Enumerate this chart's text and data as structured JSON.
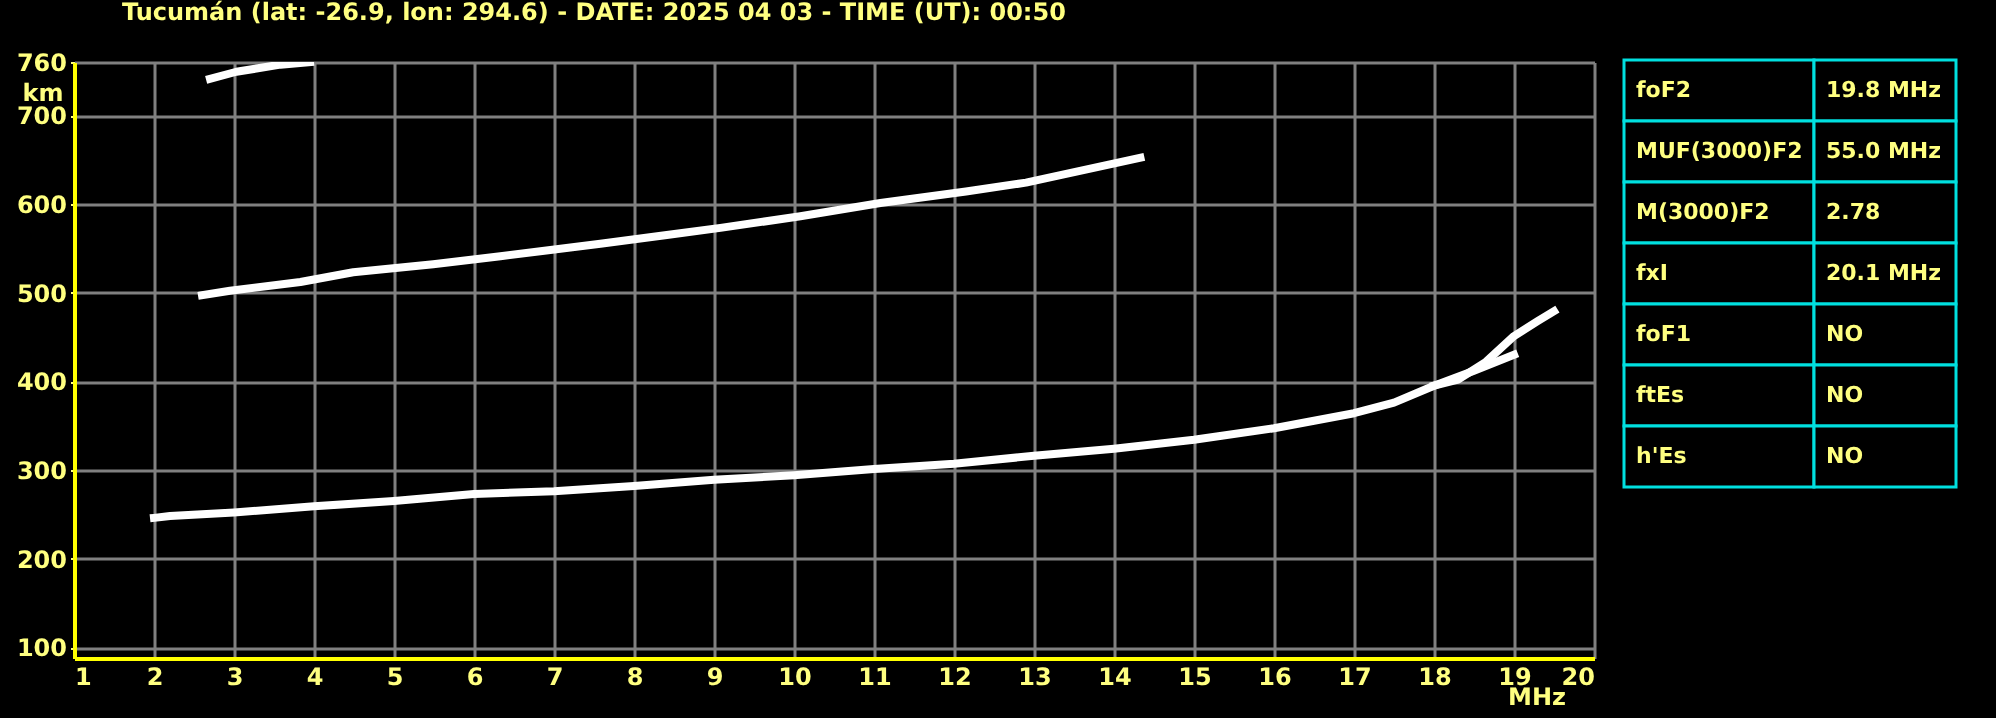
{
  "chart_data": [
    {
      "type": "line",
      "title": "Tucumán (lat: -26.9, lon: 294.6) - DATE: 2025 04 03 - TIME (UT): 00:50",
      "xlabel": "MHz",
      "ylabel": "km",
      "xlim": [
        1,
        20
      ],
      "ylim": [
        88,
        760
      ],
      "xticks": [
        1,
        2,
        3,
        4,
        5,
        6,
        7,
        8,
        9,
        10,
        11,
        12,
        13,
        14,
        15,
        16,
        17,
        18,
        19,
        20
      ],
      "yticks": [
        100,
        200,
        300,
        400,
        500,
        600,
        700,
        760
      ],
      "grid": true,
      "series": [
        {
          "color": "#ffffff",
          "x": [
            2.0,
            2.2,
            3,
            4,
            5,
            6,
            7,
            8,
            9,
            10,
            11,
            12,
            13,
            14,
            15,
            16,
            17,
            17.5,
            18,
            18.5,
            19.0
          ],
          "values": [
            246,
            248,
            252,
            259,
            265,
            273,
            276,
            282,
            289,
            294,
            301,
            307,
            316,
            324,
            334,
            347,
            364,
            376,
            395,
            412,
            430
          ]
        },
        {
          "color": "#ffffff",
          "x": [
            18.0,
            18.3,
            18.65,
            19.0,
            19.3,
            19.5
          ],
          "values": [
            395,
            402,
            422,
            451,
            468,
            479
          ]
        },
        {
          "color": "#ffffff",
          "x": [
            2.6,
            2.95,
            3.83,
            4.49,
            5.49,
            6.33,
            7.58,
            8.41,
            9.08,
            10.08,
            11.08,
            12.15,
            12.9,
            13.1,
            14.33
          ],
          "values": [
            497,
            502,
            512,
            523,
            532,
            541,
            555,
            565,
            573,
            586,
            601,
            614,
            624,
            628,
            652
          ]
        },
        {
          "color": "#ffffff",
          "x": [
            2.7,
            3.03,
            3.58,
            3.95
          ],
          "values": [
            741,
            749,
            757,
            760
          ]
        }
      ]
    },
    {
      "type": "other",
      "annotations": [
        "foF2",
        "19.8 MHz",
        "MUF(3000)F2",
        "55.0 MHz",
        "M(3000)F2",
        "2.78",
        "fxI",
        "20.1 MHz",
        "foF1",
        "NO",
        "ftEs",
        "NO",
        "h'Es",
        "NO"
      ]
    }
  ]
}
